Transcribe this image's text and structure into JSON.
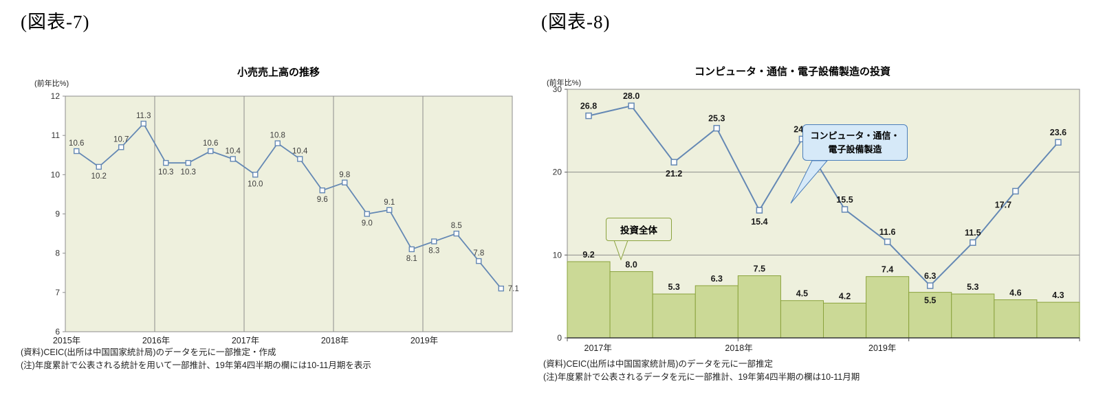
{
  "colors": {
    "plot_bg": "#eef0dd",
    "plot_border": "#8c8c8c",
    "gridline": "#8c8c8c",
    "line_blue": "#6488b4",
    "marker_fill": "#ffffff",
    "bar_fill": "#cbd996",
    "bar_border": "#8aa23c",
    "callout_blue_bg": "#d6e9f8",
    "callout_blue_border": "#4a7ebb",
    "callout_green_bg": "#eef0dd",
    "callout_green_border": "#8aa23c"
  },
  "left_panel": {
    "figure_label": "(図表-7)",
    "title": "小売売上高の推移",
    "y_axis_unit": "(前年比%)",
    "source_note": "(資料)CEIC(出所は中国国家統計局)のデータを元に一部推定・作成",
    "note": "(注)年度累計で公表される統計を用いて一部推計、19年第4四半期の欄には10-11月期を表示"
  },
  "right_panel": {
    "figure_label": "(図表-8)",
    "title": "コンピュータ・通信・電子設備製造の投資",
    "y_axis_unit": "(前年比%)",
    "line_callout_line1": "コンピュータ・通信・",
    "line_callout_line2": "電子設備製造",
    "bar_callout": "投資全体",
    "source_note": "(資料)CEIC(出所は中国国家統計局)のデータを元に一部推定",
    "note": "(注)年度累計で公表されるデータを元に一部推計、19年第4四半期の欄は10-11月期"
  },
  "chart_data": [
    {
      "type": "line",
      "title": "小売売上高の推移",
      "ylabel": "(前年比%)",
      "ylim": [
        6,
        12
      ],
      "yticks": [
        6,
        7,
        8,
        9,
        10,
        11,
        12
      ],
      "grid": "vertical-year-separators",
      "x_groups": [
        "2015年",
        "2016年",
        "2017年",
        "2018年",
        "2019年"
      ],
      "quarters_per_group": 4,
      "values": [
        10.6,
        10.2,
        10.7,
        11.3,
        10.3,
        10.3,
        10.6,
        10.4,
        10.0,
        10.8,
        10.4,
        9.6,
        9.8,
        9.0,
        9.1,
        8.1,
        8.3,
        8.5,
        7.8,
        7.1
      ],
      "label_positions": [
        "above",
        "below",
        "above",
        "above",
        "below",
        "below",
        "above",
        "above",
        "below",
        "above",
        "above",
        "below",
        "above",
        "below",
        "above",
        "below",
        "below",
        "above",
        "above",
        "right"
      ]
    },
    {
      "type": "bar+line",
      "title": "コンピュータ・通信・電子設備製造の投資",
      "ylabel": "(前年比%)",
      "ylim": [
        0,
        30
      ],
      "yticks": [
        0,
        10,
        20,
        30
      ],
      "grid": "horizontal",
      "x_groups": [
        "2017年",
        "2018年",
        "2019年"
      ],
      "quarters_per_group": 4,
      "series": [
        {
          "name": "投資全体",
          "type": "bar",
          "values": [
            9.2,
            8.0,
            5.3,
            6.3,
            7.5,
            4.5,
            4.2,
            7.4,
            5.5,
            5.3,
            4.6,
            4.3
          ],
          "label_positions": [
            "above",
            "above",
            "above",
            "above",
            "above",
            "above",
            "above",
            "above",
            "inside",
            "above",
            "above",
            "above"
          ]
        },
        {
          "name": "コンピュータ・通信・電子設備製造",
          "type": "line",
          "values": [
            26.8,
            28.0,
            21.2,
            25.3,
            15.4,
            24.0,
            15.5,
            11.6,
            6.3,
            11.5,
            17.7,
            23.6
          ],
          "label_positions": [
            "above",
            "above",
            "below",
            "above",
            "below",
            "above",
            "above",
            "above",
            "above",
            "above",
            "below-left",
            "above"
          ]
        }
      ]
    }
  ]
}
